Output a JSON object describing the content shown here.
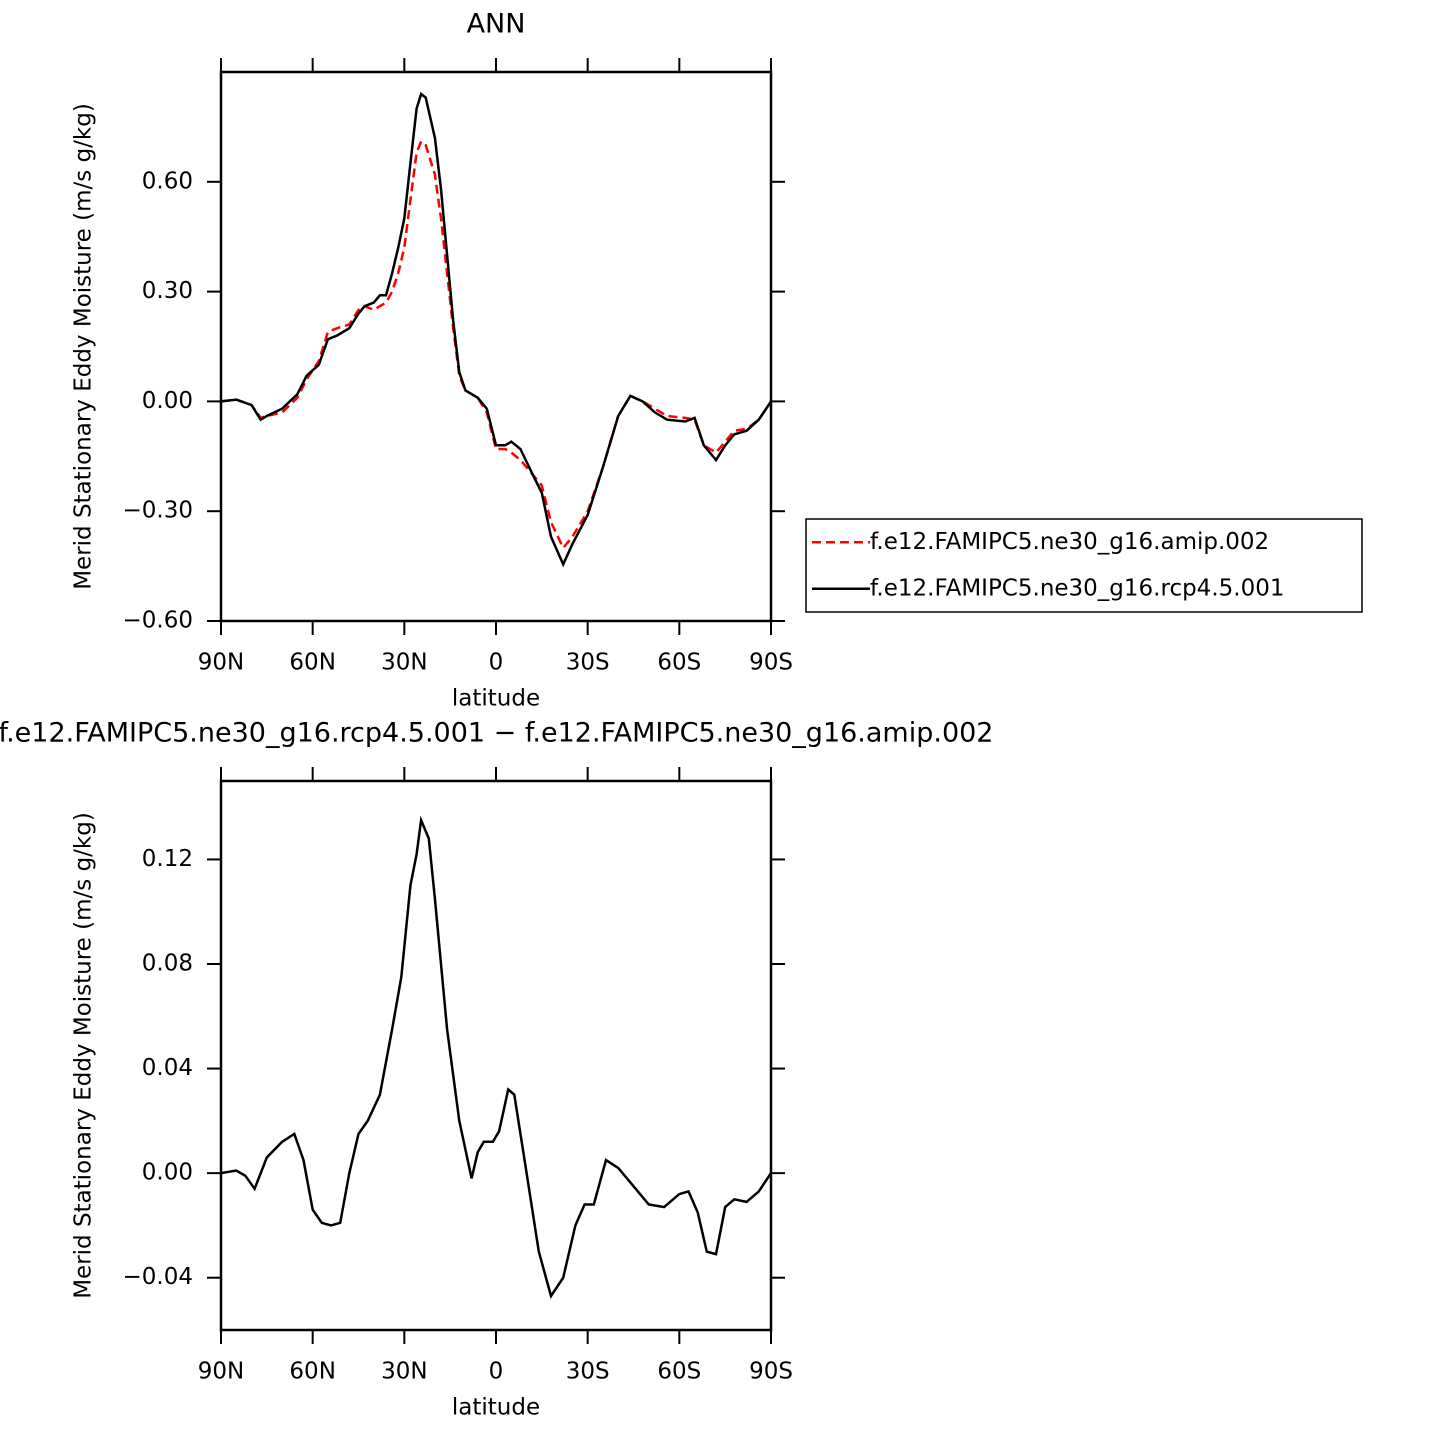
{
  "chart_data": [
    {
      "type": "line",
      "title": "ANN",
      "xlabel": "latitude",
      "ylabel": "Merid Stationary Eddy Moisture (m/s g/kg)",
      "x": [
        90,
        85,
        80,
        77,
        75,
        70,
        65,
        62,
        58,
        55,
        52,
        48,
        45,
        43,
        40,
        38,
        36,
        34,
        32,
        30,
        28,
        26,
        24.5,
        23,
        20,
        18,
        16,
        14,
        12,
        10,
        6,
        3,
        0,
        -3,
        -5,
        -8,
        -12,
        -15,
        -18,
        -22,
        -25,
        -30,
        -35,
        -40,
        -44,
        -48,
        -52,
        -56,
        -62,
        -65,
        -68,
        -72,
        -75,
        -78,
        -82,
        -86,
        -90
      ],
      "series": [
        {
          "name": "f.e12.FAMIPC5.ne30_g16.amip.002",
          "color": "#ff0000",
          "dash": true,
          "values": [
            0,
            0.005,
            -0.01,
            -0.045,
            -0.04,
            -0.03,
            0.01,
            0.06,
            0.11,
            0.19,
            0.2,
            0.21,
            0.25,
            0.26,
            0.25,
            0.26,
            0.27,
            0.3,
            0.35,
            0.42,
            0.55,
            0.68,
            0.71,
            0.7,
            0.62,
            0.5,
            0.35,
            0.2,
            0.07,
            0.03,
            0.01,
            -0.03,
            -0.13,
            -0.13,
            -0.14,
            -0.16,
            -0.2,
            -0.23,
            -0.33,
            -0.4,
            -0.37,
            -0.3,
            -0.18,
            -0.04,
            0.015,
            0,
            -0.02,
            -0.04,
            -0.045,
            -0.05,
            -0.12,
            -0.14,
            -0.11,
            -0.08,
            -0.075,
            -0.05,
            0
          ]
        },
        {
          "name": "f.e12.FAMIPC5.ne30_g16.rcp4.5.001",
          "color": "#000000",
          "dash": false,
          "values": [
            0,
            0.005,
            -0.01,
            -0.05,
            -0.04,
            -0.02,
            0.02,
            0.07,
            0.1,
            0.17,
            0.18,
            0.2,
            0.24,
            0.26,
            0.27,
            0.29,
            0.29,
            0.35,
            0.42,
            0.5,
            0.65,
            0.8,
            0.84,
            0.83,
            0.72,
            0.58,
            0.4,
            0.22,
            0.08,
            0.03,
            0.01,
            -0.02,
            -0.12,
            -0.12,
            -0.11,
            -0.13,
            -0.2,
            -0.25,
            -0.37,
            -0.445,
            -0.39,
            -0.31,
            -0.18,
            -0.04,
            0.015,
            0,
            -0.03,
            -0.05,
            -0.055,
            -0.045,
            -0.12,
            -0.16,
            -0.12,
            -0.09,
            -0.08,
            -0.05,
            0
          ]
        }
      ],
      "xlim": [
        90,
        -90
      ],
      "xticks": [
        {
          "value": 90,
          "label": "90N"
        },
        {
          "value": 60,
          "label": "60N"
        },
        {
          "value": 30,
          "label": "30N"
        },
        0,
        {
          "value": -30,
          "label": "30S"
        },
        {
          "value": -60,
          "label": "60S"
        },
        {
          "value": -90,
          "label": "90S"
        }
      ],
      "ylim": [
        -0.6,
        0.9
      ],
      "yticks": [
        {
          "value": -0.6,
          "label": "−0.60"
        },
        {
          "value": -0.3,
          "label": "−0.30"
        },
        {
          "value": 0,
          "label": "0.00"
        },
        {
          "value": 0.3,
          "label": "0.30"
        },
        {
          "value": 0.6,
          "label": "0.60"
        }
      ],
      "legend": "right"
    },
    {
      "type": "line",
      "title": "f.e12.FAMIPC5.ne30_g16.rcp4.5.001 − f.e12.FAMIPC5.ne30_g16.amip.002",
      "xlabel": "latitude",
      "ylabel": "Merid Stationary Eddy Moisture (m/s g/kg)",
      "x": [
        90,
        85,
        82,
        79,
        75,
        70,
        66,
        63,
        60,
        57,
        54,
        51,
        48,
        45,
        42,
        38,
        34,
        31,
        28,
        26,
        24.5,
        22,
        20,
        16,
        12,
        8,
        6,
        4,
        1,
        -1,
        -4,
        -6,
        -10,
        -14,
        -18,
        -22,
        -26,
        -29,
        -32,
        -36,
        -40,
        -45,
        -50,
        -55,
        -60,
        -63,
        -66,
        -69,
        -72,
        -75,
        -78,
        -82,
        -86,
        -90
      ],
      "series": [
        {
          "color": "#000000",
          "dash": false,
          "values": [
            0,
            0.001,
            -0.001,
            -0.006,
            0.006,
            0.012,
            0.015,
            0.005,
            -0.014,
            -0.019,
            -0.02,
            -0.019,
            0,
            0.015,
            0.02,
            0.03,
            0.055,
            0.075,
            0.11,
            0.122,
            0.135,
            0.128,
            0.105,
            0.055,
            0.02,
            -0.002,
            0.008,
            0.012,
            0.012,
            0.016,
            0.032,
            0.03,
            0,
            -0.03,
            -0.047,
            -0.04,
            -0.02,
            -0.012,
            -0.012,
            0.005,
            0.002,
            -0.005,
            -0.012,
            -0.013,
            -0.008,
            -0.007,
            -0.015,
            -0.03,
            -0.031,
            -0.013,
            -0.01,
            -0.011,
            -0.007,
            0
          ]
        }
      ],
      "xlim": [
        90,
        -90
      ],
      "xticks": [
        {
          "value": 90,
          "label": "90N"
        },
        {
          "value": 60,
          "label": "60N"
        },
        {
          "value": 30,
          "label": "30N"
        },
        0,
        {
          "value": -30,
          "label": "30S"
        },
        {
          "value": -60,
          "label": "60S"
        },
        {
          "value": -90,
          "label": "90S"
        }
      ],
      "ylim": [
        -0.06,
        0.15
      ],
      "yticks": [
        {
          "value": -0.04,
          "label": "−0.04"
        },
        {
          "value": 0,
          "label": "0.00"
        },
        {
          "value": 0.04,
          "label": "0.04"
        },
        {
          "value": 0.08,
          "label": "0.08"
        },
        {
          "value": 0.12,
          "label": "0.12"
        }
      ]
    }
  ]
}
